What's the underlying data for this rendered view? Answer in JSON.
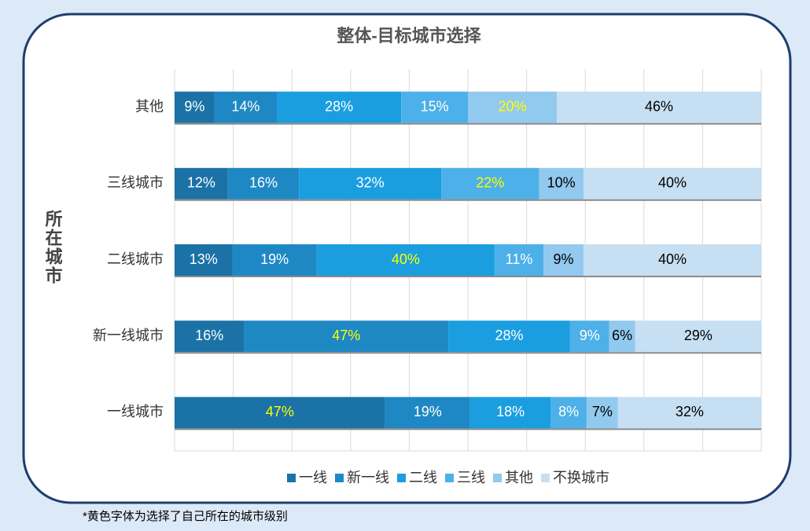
{
  "chart_data": {
    "type": "bar",
    "orientation": "horizontal",
    "stacking": "percent",
    "title": "整体-目标城市选择",
    "y_label": "所在城市",
    "footnote": "*黄色字体为选择了自己所在的城市级别",
    "categories": [
      "其他",
      "三线城市",
      "二线城市",
      "新一线城市",
      "一线城市"
    ],
    "series": [
      {
        "name": "一线",
        "color": "#1b72a6",
        "label_color": "#ffffff",
        "values": [
          9,
          12,
          13,
          16,
          47
        ],
        "value_labels": [
          "9%",
          "12%",
          "13%",
          "16%",
          "47%"
        ]
      },
      {
        "name": "新一线",
        "color": "#1e88c4",
        "label_color": "#ffffff",
        "values": [
          14,
          16,
          19,
          47,
          19
        ],
        "value_labels": [
          "14%",
          "16%",
          "19%",
          "47%",
          "19%"
        ]
      },
      {
        "name": "二线",
        "color": "#1a9ee0",
        "label_color": "#ffffff",
        "values": [
          28,
          32,
          40,
          28,
          18
        ],
        "value_labels": [
          "28%",
          "32%",
          "40%",
          "28%",
          "18%"
        ]
      },
      {
        "name": "三线",
        "color": "#4db0e8",
        "label_color": "#ffffff",
        "values": [
          15,
          22,
          11,
          9,
          8
        ],
        "value_labels": [
          "15%",
          "22%",
          "11%",
          "9%",
          "8%"
        ]
      },
      {
        "name": "其他",
        "color": "#92c9ee",
        "label_color": "#000000",
        "values": [
          20,
          10,
          9,
          6,
          7
        ],
        "value_labels": [
          "20%",
          "10%",
          "9%",
          "6%",
          "7%"
        ]
      },
      {
        "name": "不换城市",
        "color": "#c6dff3",
        "label_color": "#000000",
        "values": [
          46,
          40,
          40,
          29,
          32
        ],
        "value_labels": [
          "46%",
          "40%",
          "40%",
          "29%",
          "32%"
        ]
      }
    ],
    "highlight": [
      4,
      3,
      2,
      1,
      0
    ],
    "highlight_color": "#ffff00",
    "xlim": [
      0,
      100
    ],
    "xticks": [
      0,
      10,
      20,
      30,
      40,
      50,
      60,
      70,
      80,
      90,
      100
    ],
    "xtick_labels": false,
    "grid": true,
    "legend": "bottom"
  }
}
